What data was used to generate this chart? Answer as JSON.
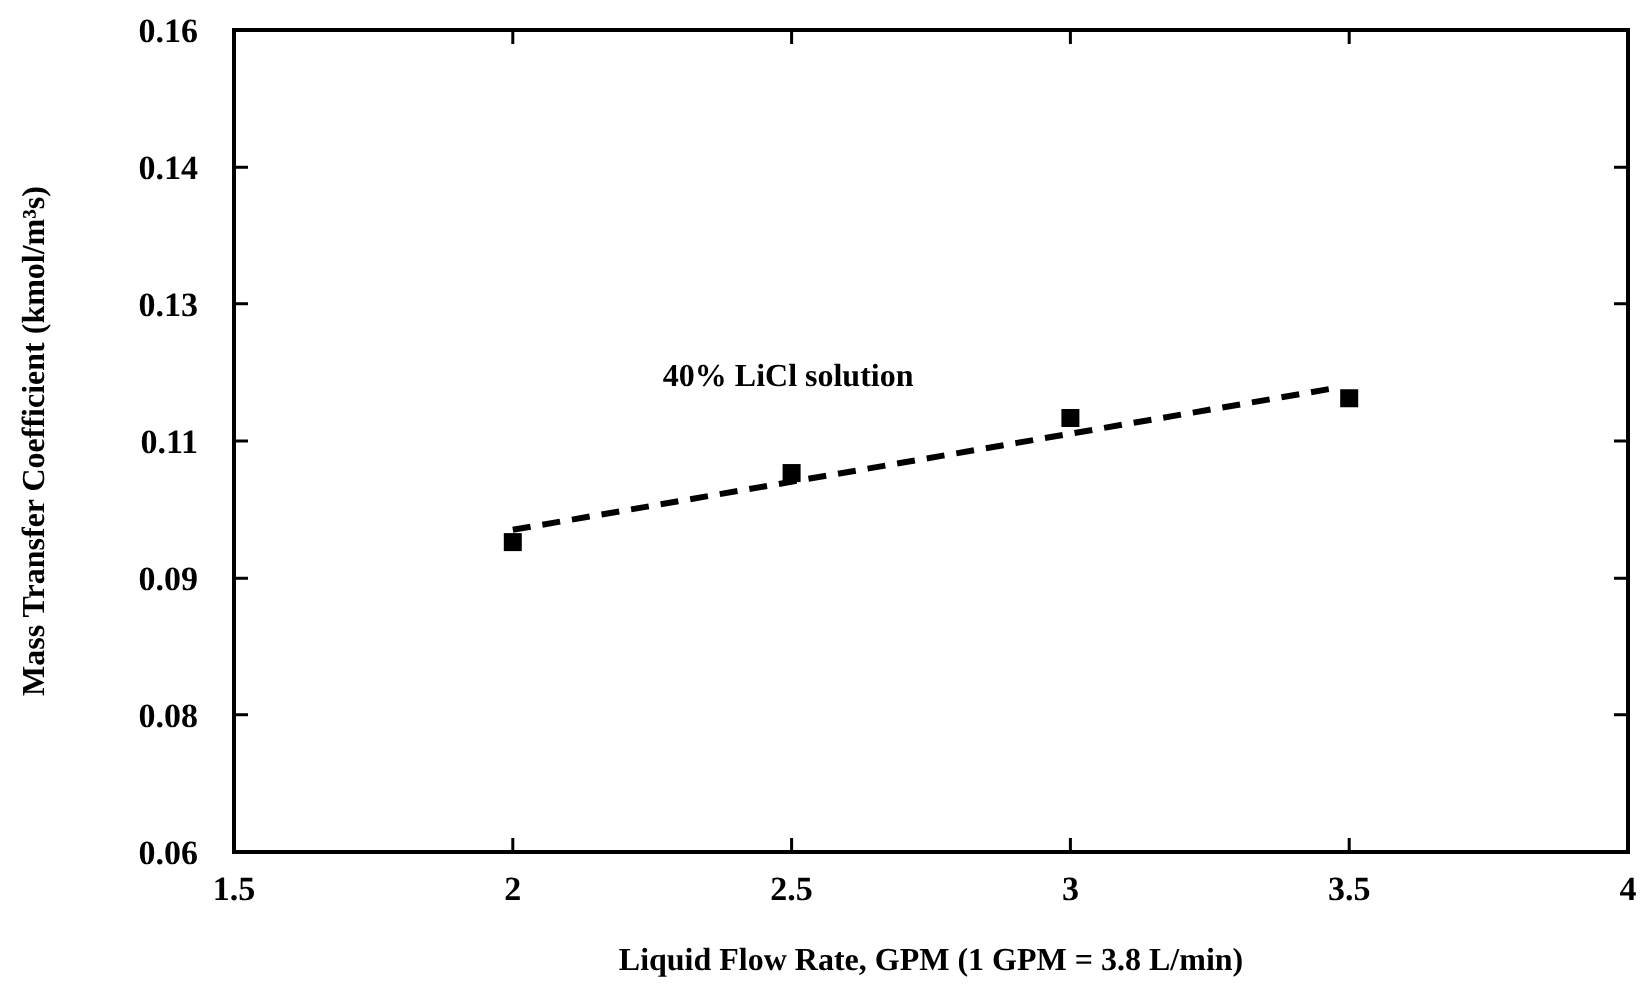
{
  "chart_data": {
    "type": "scatter",
    "xlabel": "Liquid Flow Rate, GPM (1 GPM = 3.8 L/min)",
    "ylabel": "Mass Transfer Coefficient (kmol/m³s)",
    "xlim": [
      1.5,
      4
    ],
    "xticks": [
      1.5,
      2,
      2.5,
      3,
      3.5,
      4
    ],
    "ylim": [
      0.06,
      0.16
    ],
    "yticks": [
      0.06,
      {
        "value": 0.0767,
        "label": "0.08"
      },
      {
        "value": 0.0933,
        "label": "0.09"
      },
      0.11,
      {
        "value": 0.1267,
        "label": "0.13"
      },
      {
        "value": 0.1433,
        "label": "0.14"
      },
      0.16
    ],
    "grid": false,
    "legend": false,
    "series": [
      {
        "name": "40% LiCl solution",
        "marker": "square",
        "color": "#000000",
        "x": [
          2,
          2.5,
          3,
          3.5
        ],
        "values": [
          0.0977,
          0.1061,
          0.1128,
          0.1152
        ]
      },
      {
        "type": "line",
        "line_style": "dashed",
        "marker": "none",
        "color": "#000000",
        "x": [
          2,
          3.48
        ],
        "values": [
          0.0992,
          0.1165
        ]
      }
    ]
  }
}
